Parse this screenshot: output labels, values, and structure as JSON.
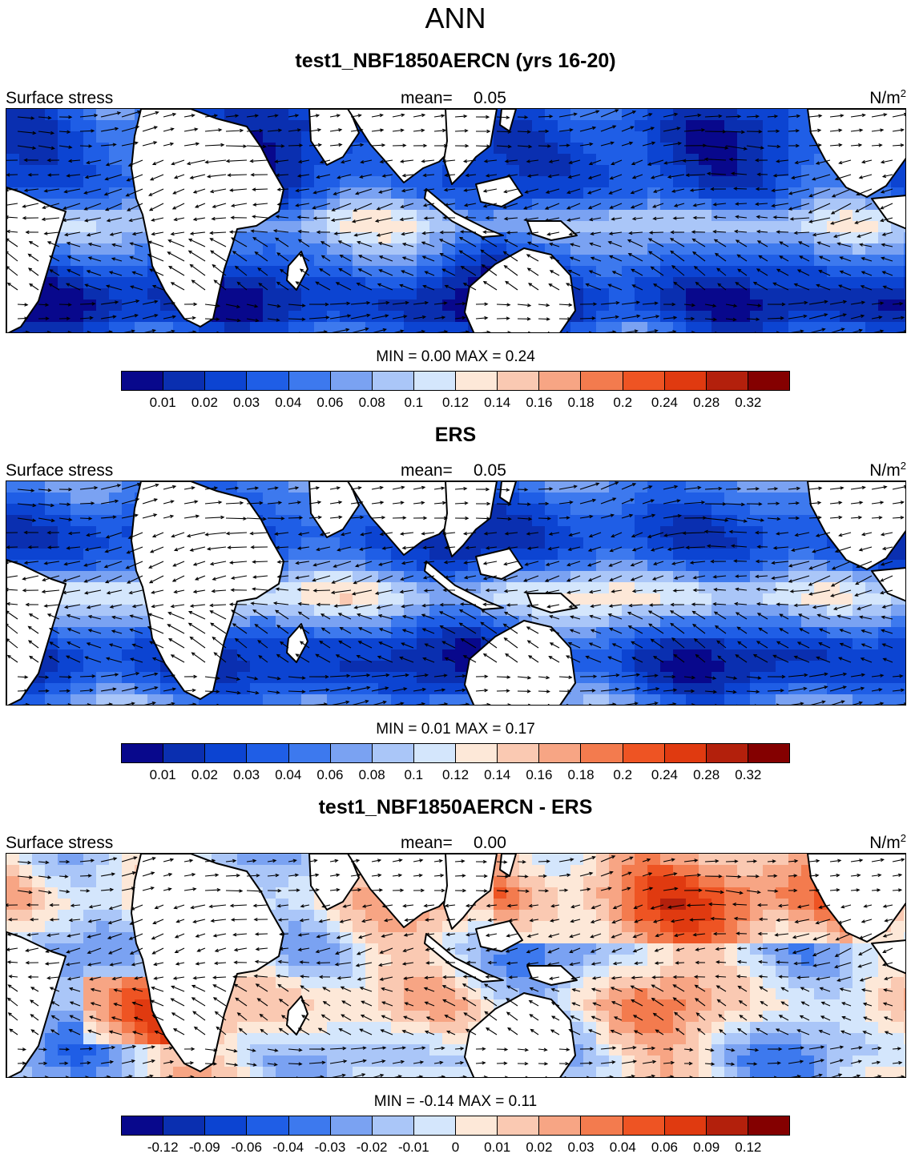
{
  "figure": {
    "title": "ANN"
  },
  "palettes": {
    "absolute": [
      "#08088c",
      "#0a2fb0",
      "#0c44d2",
      "#1f5ee6",
      "#3d79ee",
      "#7aa2f2",
      "#aac6f8",
      "#d4e6fc",
      "#fde8d8",
      "#fac9b2",
      "#f7a584",
      "#f37b4e",
      "#ee5423",
      "#e03a10",
      "#b3200c",
      "#840000"
    ],
    "difference": [
      "#08088c",
      "#0a2fb0",
      "#0c44d2",
      "#1f5ee6",
      "#3d79ee",
      "#7aa2f2",
      "#aac6f8",
      "#d4e6fc",
      "#fde8d8",
      "#fac9b2",
      "#f7a584",
      "#f37b4e",
      "#ee5423",
      "#e03a10",
      "#b3200c",
      "#840000"
    ]
  },
  "panels": [
    {
      "title": "test1_NBF1850AERCN (yrs 16-20)",
      "variable": "Surface stress",
      "mean_label": "mean=",
      "mean_value": "0.05",
      "units_base": "N/m",
      "units_exp": "2",
      "min_max": "MIN =   0.00 MAX =   0.24",
      "colorbar_labels": [
        "0.01",
        "0.02",
        "0.03",
        "0.04",
        "0.06",
        "0.08",
        "0.1",
        "0.12",
        "0.14",
        "0.16",
        "0.18",
        "0.2",
        "0.24",
        "0.28",
        "0.32"
      ],
      "palette": "absolute",
      "field": "model"
    },
    {
      "title": "ERS",
      "variable": "Surface stress",
      "mean_label": "mean=",
      "mean_value": "0.05",
      "units_base": "N/m",
      "units_exp": "2",
      "min_max": "MIN =   0.01 MAX =   0.17",
      "colorbar_labels": [
        "0.01",
        "0.02",
        "0.03",
        "0.04",
        "0.06",
        "0.08",
        "0.1",
        "0.12",
        "0.14",
        "0.16",
        "0.18",
        "0.2",
        "0.24",
        "0.28",
        "0.32"
      ],
      "palette": "absolute",
      "field": "obs"
    },
    {
      "title": "test1_NBF1850AERCN - ERS",
      "variable": "Surface stress",
      "mean_label": "mean=",
      "mean_value": "0.00",
      "units_base": "N/m",
      "units_exp": "2",
      "min_max": "MIN =  -0.14 MAX =   0.11",
      "colorbar_labels": [
        "-0.12",
        "-0.09",
        "-0.06",
        "-0.04",
        "-0.03",
        "-0.02",
        "-0.01",
        "0",
        "0.01",
        "0.02",
        "0.03",
        "0.04",
        "0.06",
        "0.09",
        "0.12"
      ],
      "palette": "difference",
      "field": "diff"
    }
  ]
}
